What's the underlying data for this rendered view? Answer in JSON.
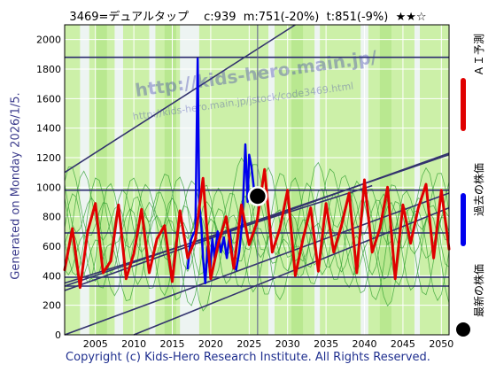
{
  "title": "3469=デュアルタップ　 c:939  m:751(-20%)  t:851(-9%)  ★★☆",
  "generated": "Generated on Monday 2026/1/5.",
  "footer": "Copyright (c) Kids-Hero Research Institute. All Rights Reserved.",
  "watermark": {
    "line1": "http://kids-hero.main.jp/",
    "line2": "http://kids-hero.main.jp/jstock/code3469.html"
  },
  "legend": [
    {
      "label": "ＡＩ予測",
      "color": "#e00000"
    },
    {
      "label": "過去の株価",
      "color": "#0000ee"
    },
    {
      "label": "最新の株価",
      "color": "#000000"
    }
  ],
  "chart_data": {
    "type": "line",
    "title": "3469=デュアルタップ　 c:939  m:751(-20%)  t:851(-9%)  ★★☆",
    "xlim": [
      2001.0,
      2051.0
    ],
    "ylim": [
      0,
      2100
    ],
    "x_ticks": [
      2005,
      2010,
      2015,
      2020,
      2025,
      2030,
      2035,
      2040,
      2045,
      2050
    ],
    "y_ticks": [
      0,
      200,
      400,
      600,
      800,
      1000,
      1200,
      1400,
      1600,
      1800,
      2000
    ],
    "grid": true,
    "legend_position": "right",
    "series": [
      {
        "name": "過去の株価",
        "color": "#0000ee",
        "x": [
          2017.0,
          2017.4,
          2017.8,
          2018.0,
          2018.3,
          2018.5,
          2018.8,
          2019.0,
          2019.3,
          2019.6,
          2019.9,
          2020.2,
          2020.5,
          2020.9,
          2021.3,
          2021.7,
          2022.1,
          2022.5,
          2022.9,
          2023.3,
          2023.7,
          2024.1,
          2024.5,
          2024.8,
          2025.0,
          2025.3,
          2025.6,
          2025.9,
          2026.1
        ],
        "y": [
          450,
          640,
          690,
          700,
          1870,
          900,
          720,
          520,
          350,
          600,
          420,
          650,
          520,
          700,
          560,
          660,
          520,
          700,
          480,
          440,
          560,
          760,
          1290,
          900,
          1220,
          1140,
          1000,
          940,
          939
        ]
      },
      {
        "name": "ＡＩ予測",
        "color": "#e00000",
        "x": [
          2001.0,
          2002.0,
          2003.0,
          2004.0,
          2005.0,
          2006.0,
          2007.0,
          2008.0,
          2009.0,
          2010.0,
          2011.0,
          2012.0,
          2013.0,
          2014.0,
          2015.0,
          2016.0,
          2017.0,
          2018.0,
          2019.0,
          2020.0,
          2021.0,
          2022.0,
          2023.0,
          2024.0,
          2025.0,
          2026.0,
          2027.0,
          2028.0,
          2029.0,
          2030.0,
          2031.0,
          2032.0,
          2033.0,
          2034.0,
          2035.0,
          2036.0,
          2037.0,
          2038.0,
          2039.0,
          2040.0,
          2041.0,
          2042.0,
          2043.0,
          2044.0,
          2045.0,
          2046.0,
          2047.0,
          2048.0,
          2049.0,
          2050.0,
          2051.0
        ],
        "y": [
          440,
          720,
          320,
          700,
          890,
          420,
          500,
          880,
          380,
          550,
          850,
          420,
          650,
          740,
          360,
          840,
          520,
          650,
          1060,
          380,
          620,
          800,
          450,
          880,
          610,
          760,
          1120,
          560,
          720,
          980,
          400,
          650,
          860,
          430,
          890,
          560,
          740,
          960,
          420,
          1050,
          560,
          720,
          1000,
          380,
          880,
          620,
          860,
          1020,
          520,
          980,
          580
        ]
      }
    ],
    "latest": {
      "name": "最新の株価",
      "x": 2026.1,
      "y": 939
    },
    "markers": {
      "c": 939,
      "m": 751,
      "t": 851
    }
  }
}
